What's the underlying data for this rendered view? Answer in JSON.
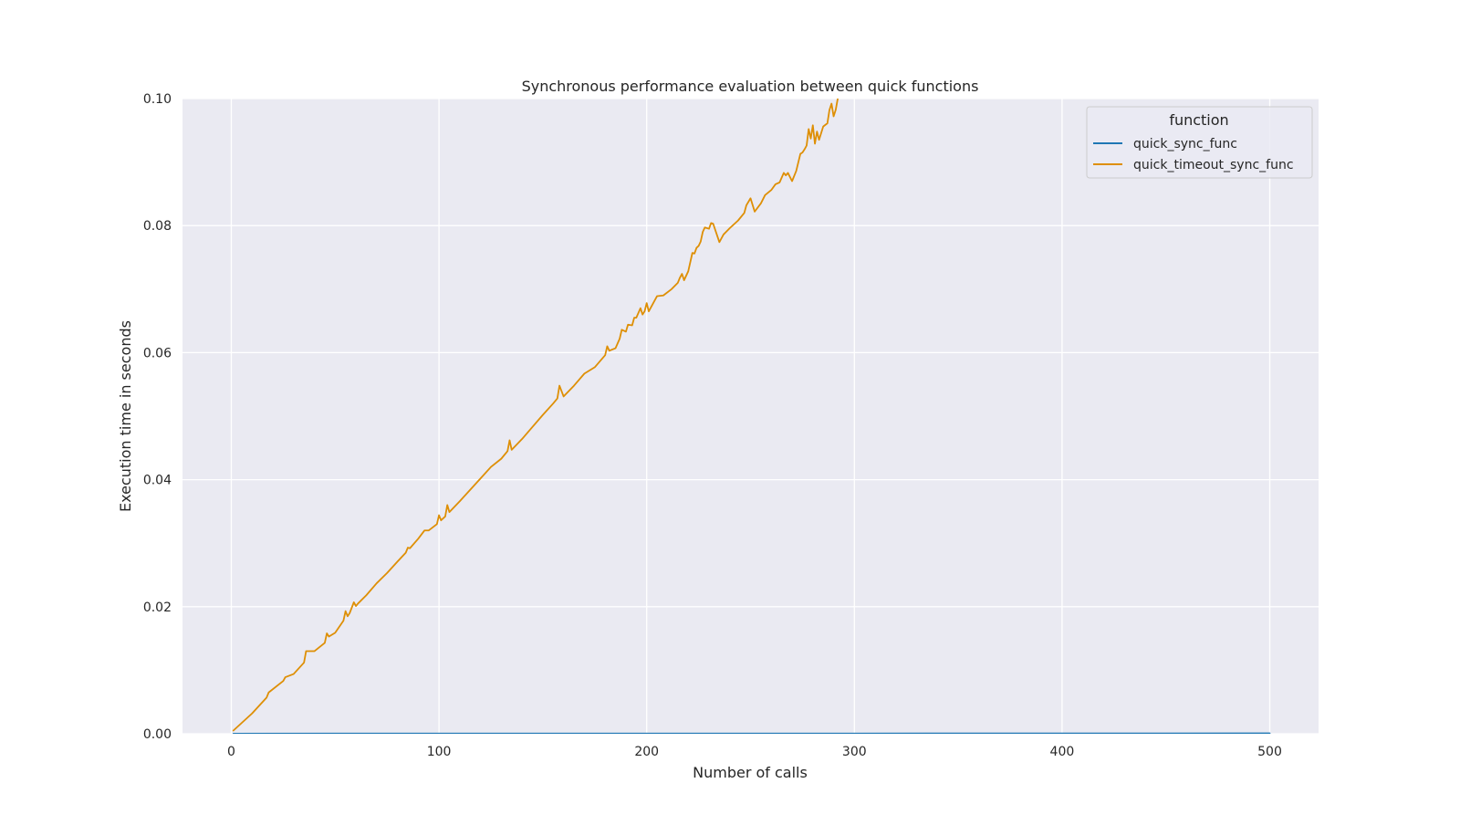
{
  "chart_data": {
    "type": "line",
    "title": "Synchronous performance evaluation between quick functions",
    "xlabel": "Number of calls",
    "ylabel": "Execution time in seconds",
    "xlim": [
      -23.5,
      523.5
    ],
    "ylim": [
      0.0,
      0.1
    ],
    "x_ticks": [
      0,
      100,
      200,
      300,
      400,
      500
    ],
    "x_tick_labels": [
      "0",
      "100",
      "200",
      "300",
      "400",
      "500"
    ],
    "y_ticks": [
      0.0,
      0.02,
      0.04,
      0.06,
      0.08,
      0.1
    ],
    "y_tick_labels": [
      "0.00",
      "0.02",
      "0.04",
      "0.06",
      "0.08",
      "0.10"
    ],
    "grid": true,
    "legend": {
      "title": "function",
      "placement": "top-right"
    },
    "series": [
      {
        "name": "quick_sync_func",
        "color": "#1f77b4",
        "x": [
          1,
          50,
          100,
          150,
          200,
          250,
          300,
          350,
          400,
          450,
          500
        ],
        "y": [
          2e-05,
          3e-05,
          3e-05,
          3e-05,
          4e-05,
          4e-05,
          4e-05,
          5e-05,
          5e-05,
          5e-05,
          6e-05
        ]
      },
      {
        "name": "quick_timeout_sync_func",
        "color": "#de8f05",
        "x": [
          1,
          10,
          17,
          18,
          25,
          26,
          30,
          35,
          36,
          37,
          40,
          45,
          46,
          47,
          50,
          54,
          55,
          56,
          57,
          59,
          60,
          61,
          65,
          70,
          75,
          80,
          84,
          85,
          86,
          90,
          93,
          95,
          99,
          100,
          101,
          103,
          104,
          105,
          110,
          115,
          120,
          125,
          130,
          133,
          134,
          135,
          140,
          145,
          150,
          155,
          157,
          158,
          160,
          165,
          170,
          175,
          180,
          181,
          182,
          185,
          187,
          188,
          190,
          191,
          193,
          194,
          195,
          197,
          198,
          199,
          200,
          201,
          205,
          208,
          212,
          215,
          216,
          217,
          218,
          220,
          222,
          223,
          224,
          225,
          226,
          227,
          228,
          230,
          231,
          232,
          235,
          236,
          237,
          240,
          244,
          247,
          248,
          250,
          252,
          255,
          257,
          260,
          262,
          264,
          266,
          267,
          268,
          270,
          272,
          274,
          275,
          276,
          277,
          278,
          279,
          280,
          281,
          282,
          283,
          285,
          287,
          288,
          289,
          290,
          291,
          292,
          293
        ],
        "y": [
          0.0005,
          0.0032,
          0.0057,
          0.0065,
          0.0083,
          0.0089,
          0.0094,
          0.0112,
          0.013,
          0.013,
          0.013,
          0.0143,
          0.0158,
          0.0153,
          0.0159,
          0.0178,
          0.0193,
          0.0185,
          0.019,
          0.0207,
          0.0201,
          0.0205,
          0.0218,
          0.0237,
          0.0253,
          0.0271,
          0.0285,
          0.0293,
          0.0292,
          0.0307,
          0.032,
          0.032,
          0.033,
          0.0344,
          0.0336,
          0.0342,
          0.036,
          0.0349,
          0.0366,
          0.0384,
          0.0402,
          0.042,
          0.0433,
          0.0445,
          0.0462,
          0.0447,
          0.0464,
          0.0483,
          0.0502,
          0.052,
          0.0528,
          0.0548,
          0.0531,
          0.0548,
          0.0567,
          0.0577,
          0.0596,
          0.061,
          0.0603,
          0.0607,
          0.0622,
          0.0636,
          0.0633,
          0.0644,
          0.0643,
          0.0655,
          0.0655,
          0.067,
          0.066,
          0.0665,
          0.0678,
          0.0665,
          0.0689,
          0.069,
          0.07,
          0.071,
          0.0718,
          0.0724,
          0.0714,
          0.0728,
          0.0757,
          0.0756,
          0.0765,
          0.0768,
          0.0775,
          0.079,
          0.0797,
          0.0795,
          0.0804,
          0.0803,
          0.0774,
          0.078,
          0.0786,
          0.0796,
          0.0808,
          0.082,
          0.0832,
          0.0843,
          0.0822,
          0.0835,
          0.0848,
          0.0856,
          0.0865,
          0.0868,
          0.0883,
          0.0879,
          0.0883,
          0.087,
          0.0886,
          0.0913,
          0.0915,
          0.092,
          0.0926,
          0.0952,
          0.0937,
          0.0958,
          0.0929,
          0.0948,
          0.0935,
          0.0956,
          0.0961,
          0.0982,
          0.0992,
          0.0972,
          0.0982,
          0.1,
          0.101
        ]
      }
    ]
  }
}
